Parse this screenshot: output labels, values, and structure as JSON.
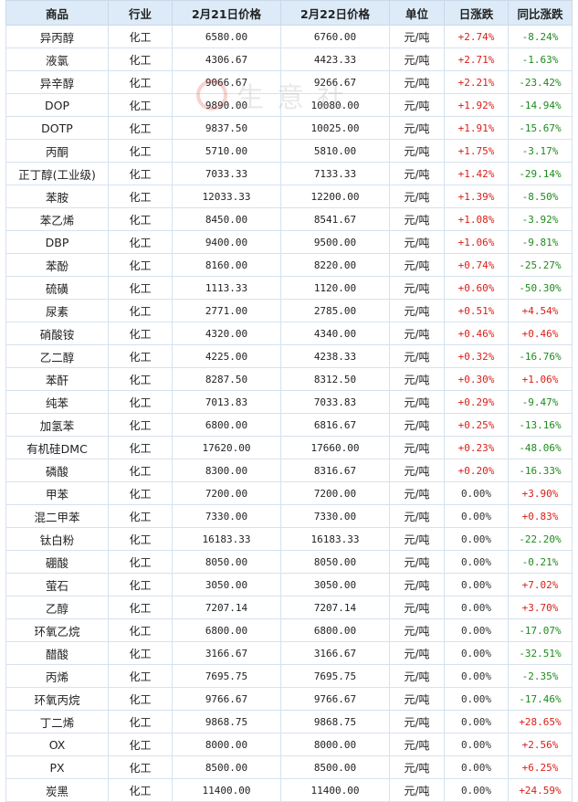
{
  "colors": {
    "header_bg": "#dcebf7",
    "name_link": "#1b4f9c",
    "up": "#d91e18",
    "down": "#1e8a1e",
    "flat": "#333333"
  },
  "watermark": {
    "text": "生意社",
    "icon": "shengyishe-logo-icon"
  },
  "columns": [
    "商品",
    "行业",
    "2月21日价格",
    "2月22日价格",
    "单位",
    "日涨跌",
    "同比涨跌"
  ],
  "rows": [
    {
      "name": "异丙醇",
      "industry": "化工",
      "p1": "6580.00",
      "p2": "6760.00",
      "unit": "元/吨",
      "daily": "+2.74%",
      "yoy": "-8.24%"
    },
    {
      "name": "液氯",
      "industry": "化工",
      "p1": "4306.67",
      "p2": "4423.33",
      "unit": "元/吨",
      "daily": "+2.71%",
      "yoy": "-1.63%"
    },
    {
      "name": "异辛醇",
      "industry": "化工",
      "p1": "9066.67",
      "p2": "9266.67",
      "unit": "元/吨",
      "daily": "+2.21%",
      "yoy": "-23.42%"
    },
    {
      "name": "DOP",
      "industry": "化工",
      "p1": "9890.00",
      "p2": "10080.00",
      "unit": "元/吨",
      "daily": "+1.92%",
      "yoy": "-14.94%"
    },
    {
      "name": "DOTP",
      "industry": "化工",
      "p1": "9837.50",
      "p2": "10025.00",
      "unit": "元/吨",
      "daily": "+1.91%",
      "yoy": "-15.67%"
    },
    {
      "name": "丙酮",
      "industry": "化工",
      "p1": "5710.00",
      "p2": "5810.00",
      "unit": "元/吨",
      "daily": "+1.75%",
      "yoy": "-3.17%"
    },
    {
      "name": "正丁醇(工业级)",
      "industry": "化工",
      "p1": "7033.33",
      "p2": "7133.33",
      "unit": "元/吨",
      "daily": "+1.42%",
      "yoy": "-29.14%"
    },
    {
      "name": "苯胺",
      "industry": "化工",
      "p1": "12033.33",
      "p2": "12200.00",
      "unit": "元/吨",
      "daily": "+1.39%",
      "yoy": "-8.50%"
    },
    {
      "name": "苯乙烯",
      "industry": "化工",
      "p1": "8450.00",
      "p2": "8541.67",
      "unit": "元/吨",
      "daily": "+1.08%",
      "yoy": "-3.92%"
    },
    {
      "name": "DBP",
      "industry": "化工",
      "p1": "9400.00",
      "p2": "9500.00",
      "unit": "元/吨",
      "daily": "+1.06%",
      "yoy": "-9.81%"
    },
    {
      "name": "苯酚",
      "industry": "化工",
      "p1": "8160.00",
      "p2": "8220.00",
      "unit": "元/吨",
      "daily": "+0.74%",
      "yoy": "-25.27%"
    },
    {
      "name": "硫磺",
      "industry": "化工",
      "p1": "1113.33",
      "p2": "1120.00",
      "unit": "元/吨",
      "daily": "+0.60%",
      "yoy": "-50.30%"
    },
    {
      "name": "尿素",
      "industry": "化工",
      "p1": "2771.00",
      "p2": "2785.00",
      "unit": "元/吨",
      "daily": "+0.51%",
      "yoy": "+4.54%"
    },
    {
      "name": "硝酸铵",
      "industry": "化工",
      "p1": "4320.00",
      "p2": "4340.00",
      "unit": "元/吨",
      "daily": "+0.46%",
      "yoy": "+0.46%"
    },
    {
      "name": "乙二醇",
      "industry": "化工",
      "p1": "4225.00",
      "p2": "4238.33",
      "unit": "元/吨",
      "daily": "+0.32%",
      "yoy": "-16.76%"
    },
    {
      "name": "苯酐",
      "industry": "化工",
      "p1": "8287.50",
      "p2": "8312.50",
      "unit": "元/吨",
      "daily": "+0.30%",
      "yoy": "+1.06%"
    },
    {
      "name": "纯苯",
      "industry": "化工",
      "p1": "7013.83",
      "p2": "7033.83",
      "unit": "元/吨",
      "daily": "+0.29%",
      "yoy": "-9.47%"
    },
    {
      "name": "加氢苯",
      "industry": "化工",
      "p1": "6800.00",
      "p2": "6816.67",
      "unit": "元/吨",
      "daily": "+0.25%",
      "yoy": "-13.16%"
    },
    {
      "name": "有机硅DMC",
      "industry": "化工",
      "p1": "17620.00",
      "p2": "17660.00",
      "unit": "元/吨",
      "daily": "+0.23%",
      "yoy": "-48.06%"
    },
    {
      "name": "磷酸",
      "industry": "化工",
      "p1": "8300.00",
      "p2": "8316.67",
      "unit": "元/吨",
      "daily": "+0.20%",
      "yoy": "-16.33%"
    },
    {
      "name": "甲苯",
      "industry": "化工",
      "p1": "7200.00",
      "p2": "7200.00",
      "unit": "元/吨",
      "daily": "0.00%",
      "yoy": "+3.90%"
    },
    {
      "name": "混二甲苯",
      "industry": "化工",
      "p1": "7330.00",
      "p2": "7330.00",
      "unit": "元/吨",
      "daily": "0.00%",
      "yoy": "+0.83%"
    },
    {
      "name": "钛白粉",
      "industry": "化工",
      "p1": "16183.33",
      "p2": "16183.33",
      "unit": "元/吨",
      "daily": "0.00%",
      "yoy": "-22.20%"
    },
    {
      "name": "硼酸",
      "industry": "化工",
      "p1": "8050.00",
      "p2": "8050.00",
      "unit": "元/吨",
      "daily": "0.00%",
      "yoy": "-0.21%"
    },
    {
      "name": "萤石",
      "industry": "化工",
      "p1": "3050.00",
      "p2": "3050.00",
      "unit": "元/吨",
      "daily": "0.00%",
      "yoy": "+7.02%"
    },
    {
      "name": "乙醇",
      "industry": "化工",
      "p1": "7207.14",
      "p2": "7207.14",
      "unit": "元/吨",
      "daily": "0.00%",
      "yoy": "+3.70%"
    },
    {
      "name": "环氧乙烷",
      "industry": "化工",
      "p1": "6800.00",
      "p2": "6800.00",
      "unit": "元/吨",
      "daily": "0.00%",
      "yoy": "-17.07%"
    },
    {
      "name": "醋酸",
      "industry": "化工",
      "p1": "3166.67",
      "p2": "3166.67",
      "unit": "元/吨",
      "daily": "0.00%",
      "yoy": "-32.51%"
    },
    {
      "name": "丙烯",
      "industry": "化工",
      "p1": "7695.75",
      "p2": "7695.75",
      "unit": "元/吨",
      "daily": "0.00%",
      "yoy": "-2.35%"
    },
    {
      "name": "环氧丙烷",
      "industry": "化工",
      "p1": "9766.67",
      "p2": "9766.67",
      "unit": "元/吨",
      "daily": "0.00%",
      "yoy": "-17.46%"
    },
    {
      "name": "丁二烯",
      "industry": "化工",
      "p1": "9868.75",
      "p2": "9868.75",
      "unit": "元/吨",
      "daily": "0.00%",
      "yoy": "+28.65%"
    },
    {
      "name": "OX",
      "industry": "化工",
      "p1": "8000.00",
      "p2": "8000.00",
      "unit": "元/吨",
      "daily": "0.00%",
      "yoy": "+2.56%"
    },
    {
      "name": "PX",
      "industry": "化工",
      "p1": "8500.00",
      "p2": "8500.00",
      "unit": "元/吨",
      "daily": "0.00%",
      "yoy": "+6.25%"
    },
    {
      "name": "炭黑",
      "industry": "化工",
      "p1": "11400.00",
      "p2": "11400.00",
      "unit": "元/吨",
      "daily": "0.00%",
      "yoy": "+24.59%"
    }
  ]
}
